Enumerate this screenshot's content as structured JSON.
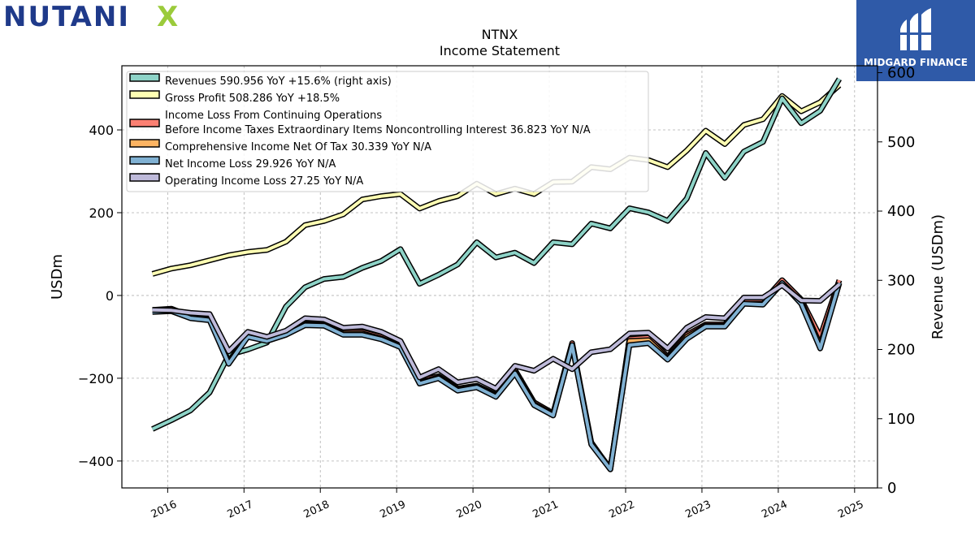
{
  "logo_left": {
    "brand": "NUTANIX",
    "brand_main": "NUTANI",
    "brand_x": "X",
    "color": "#1f3a8a",
    "accent": "#9bcb3b"
  },
  "logo_right": {
    "brand": "MIDGARD FINANCE",
    "background": "#2f5aa8"
  },
  "chart_data": {
    "type": "line",
    "title": "NTNX",
    "subtitle": "Income Statement",
    "ylabel": "USDm",
    "ylabel_right": "Revenue (USDm)",
    "ylim": [
      -465,
      555
    ],
    "ylim_right": [
      0,
      610
    ],
    "yticks": [
      "−400",
      "−200",
      "0",
      "200",
      "400"
    ],
    "yticks_right": [
      "0",
      "100",
      "200",
      "300",
      "400",
      "500",
      "600"
    ],
    "xlim": [
      2015.4,
      2025.3
    ],
    "xticks": [
      "2016",
      "2017",
      "2018",
      "2019",
      "2020",
      "2021",
      "2022",
      "2023",
      "2024",
      "2025"
    ],
    "grid": true,
    "legend_position": "top-left",
    "x": [
      2015.8,
      2016.05,
      2016.3,
      2016.55,
      2016.8,
      2017.05,
      2017.3,
      2017.55,
      2017.8,
      2018.05,
      2018.3,
      2018.55,
      2018.8,
      2019.05,
      2019.3,
      2019.55,
      2019.8,
      2020.05,
      2020.3,
      2020.55,
      2020.8,
      2021.05,
      2021.3,
      2021.55,
      2021.8,
      2022.05,
      2022.3,
      2022.55,
      2022.8,
      2023.05,
      2023.3,
      2023.55,
      2023.8,
      2024.05,
      2024.3,
      2024.55,
      2024.8
    ],
    "series": [
      {
        "name": "Revenues",
        "legend": "Revenues  590.956 YoY +15.6% (right axis)",
        "color": "#8dd3c7",
        "axis": "right",
        "values": [
          85,
          98,
          112,
          138,
          192,
          200,
          210,
          262,
          290,
          302,
          305,
          318,
          328,
          345,
          295,
          308,
          323,
          355,
          333,
          340,
          325,
          355,
          352,
          382,
          375,
          404,
          398,
          386,
          418,
          484,
          448,
          486,
          500,
          563,
          527,
          545,
          591
        ]
      },
      {
        "name": "Gross Profit",
        "legend": "Gross Profit  508.286 YoY +18.5%",
        "color": "#ffffb3",
        "axis": "left",
        "values": [
          52,
          65,
          73,
          85,
          97,
          105,
          110,
          130,
          170,
          180,
          196,
          232,
          240,
          245,
          210,
          228,
          240,
          270,
          245,
          258,
          245,
          274,
          275,
          310,
          305,
          333,
          327,
          310,
          350,
          398,
          366,
          412,
          426,
          482,
          445,
          467,
          508
        ]
      },
      {
        "name": "Income Loss From Continuing Operations Before Income Taxes Extraordinary Items Noncontrolling Interest",
        "legend": "Income Loss From Continuing Operations",
        "legend2": "Before Income Taxes Extraordinary Items Noncontrolling Interest  36.823 YoY N/A",
        "color": "#fb8072",
        "axis": "left",
        "values": [
          -35,
          -32,
          -50,
          -55,
          -160,
          -95,
          -105,
          -92,
          -68,
          -70,
          -88,
          -88,
          -100,
          -120,
          -205,
          -195,
          -225,
          -218,
          -240,
          -180,
          -258,
          -285,
          -115,
          -355,
          -420,
          -105,
          -102,
          -148,
          -95,
          -70,
          -70,
          -15,
          -15,
          37,
          -10,
          -100,
          37
        ]
      },
      {
        "name": "Comprehensive Income Net Of Tax",
        "legend": "Comprehensive Income Net Of Tax  30.339 YoY N/A",
        "color": "#fdb462",
        "axis": "left",
        "values": [
          -38,
          -35,
          -52,
          -58,
          -163,
          -98,
          -108,
          -94,
          -70,
          -72,
          -92,
          -92,
          -104,
          -123,
          -210,
          -198,
          -228,
          -220,
          -243,
          -185,
          -262,
          -288,
          -120,
          -358,
          -418,
          -110,
          -108,
          -152,
          -100,
          -73,
          -73,
          -20,
          -20,
          30,
          -15,
          -120,
          30
        ]
      },
      {
        "name": "Net Income Loss",
        "legend": "Net Income Loss  29.926 YoY N/A",
        "color": "#80b1d3",
        "axis": "left",
        "values": [
          -40,
          -38,
          -55,
          -60,
          -165,
          -100,
          -110,
          -95,
          -72,
          -73,
          -95,
          -95,
          -106,
          -125,
          -213,
          -200,
          -230,
          -222,
          -245,
          -188,
          -265,
          -290,
          -120,
          -360,
          -420,
          -120,
          -115,
          -155,
          -105,
          -75,
          -75,
          -20,
          -22,
          30,
          -20,
          -128,
          30
        ]
      },
      {
        "name": "Operating Income Loss",
        "legend": "Operating Income Loss  27.25 YoY N/A",
        "color": "#bebada",
        "axis": "left",
        "values": [
          -35,
          -36,
          -42,
          -45,
          -135,
          -88,
          -100,
          -85,
          -55,
          -58,
          -78,
          -75,
          -88,
          -110,
          -198,
          -178,
          -210,
          -202,
          -225,
          -170,
          -182,
          -153,
          -178,
          -137,
          -130,
          -92,
          -90,
          -128,
          -78,
          -52,
          -55,
          -5,
          -5,
          25,
          -12,
          -13,
          27
        ]
      }
    ]
  }
}
